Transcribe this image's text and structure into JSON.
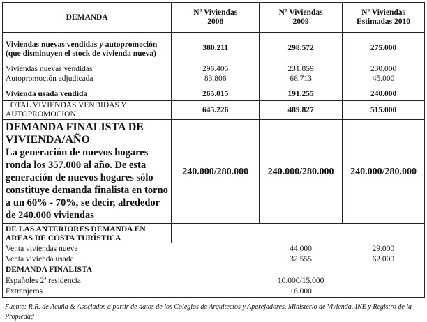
{
  "header": {
    "demanda": "DEMANDA",
    "col2008": [
      "Nº Viviendas",
      "2008"
    ],
    "col2009": [
      "Nº Viviendas",
      "2009"
    ],
    "col2010": [
      "Nº Viviendas",
      "Estimadas 2010"
    ]
  },
  "section1": {
    "main": {
      "label": "Viviendas nuevas vendidas y autopromoción (que disminuyen el stock de vivienda nueva)",
      "v2008": "380.211",
      "v2009": "298.572",
      "v2010": "275.000"
    },
    "rows": [
      {
        "label": "Viviendas nuevas vendidas",
        "v2008": "296.405",
        "v2009": "231.859",
        "v2010": "230.000"
      },
      {
        "label": "Autopromoción adjudicada",
        "v2008": "83.806",
        "v2009": "66.713",
        "v2010": "45.000"
      }
    ],
    "usada": {
      "label": "Vivienda usada vendida",
      "v2008": "265.015",
      "v2009": "191.255",
      "v2010": "240.000"
    }
  },
  "total": {
    "label": "TOTAL VIVIENDAS VENDIDAS Y AUTOPROMOCION",
    "v2008": "645.226",
    "v2009": "489.827",
    "v2010": "515.000"
  },
  "finalista": {
    "title": "DEMANDA FINALISTA DE VIVIENDA/AÑO",
    "text": "La generación de nuevos hogares ronda los 357.000 al año. De esta generación de nuevos hogares sólo constituye demanda finalista en torno a un 60% - 70%, se decir, alrededor de 240.000 viviendas",
    "v2008": "240.000/280.000",
    "v2009": "240.000/280.000",
    "v2010": "240.000/280.000"
  },
  "costa": {
    "title": "DE LAS ANTERIORES DEMANDA EN AREAS DE COSTA TURÍSTICA",
    "rows": [
      {
        "label": "Venta viviendas nueva",
        "v2009": "44.000",
        "v2010": "29.000"
      },
      {
        "label": "Venta vivienda usada",
        "v2009": "32.555",
        "v2010": "62.000"
      }
    ],
    "subtitle": "DEMANDA FINALISTA",
    "rows2": [
      {
        "label": "Españoles 2ª residencia",
        "value": "10.000/15.000"
      },
      {
        "label": "Extranjeros",
        "value": "16.000"
      }
    ]
  },
  "footnote": "Fuente: R.R. de Acuña & Asociados a partir de datos de los Colegios de Arquitectos y Aparejadores, Ministerio de Vivienda, INE  y Registro de la Propiedad"
}
